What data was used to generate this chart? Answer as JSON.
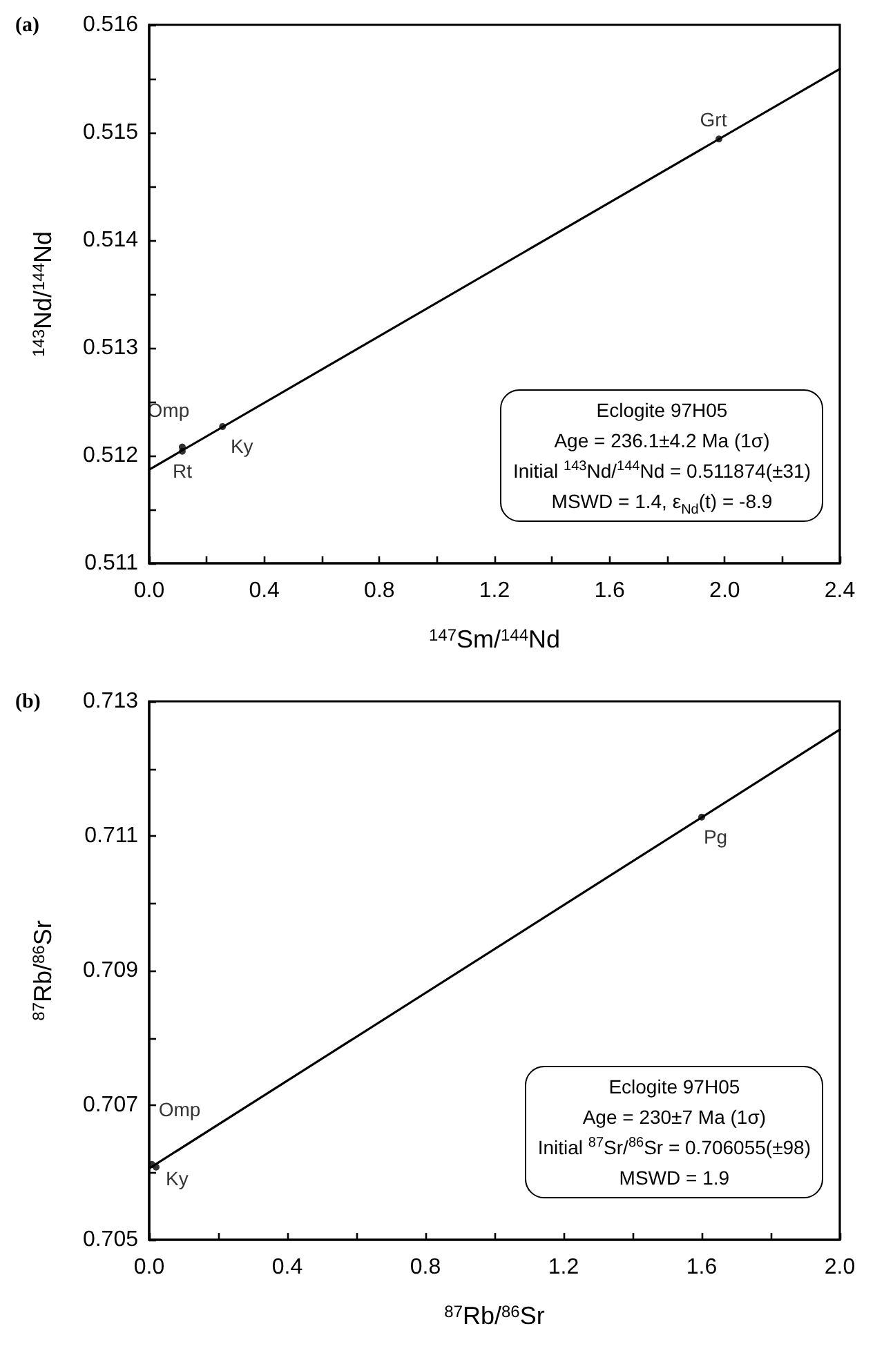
{
  "chart_data": [
    {
      "type": "scatter",
      "title": "(a)",
      "xlabel": "$^{147}$Sm/$^{144}$Nd",
      "ylabel": "$^{143}$Nd/$^{144}$Nd",
      "line_style": "solid",
      "xlim": [
        0,
        2.4
      ],
      "xticks": [
        {
          "value": 0,
          "label": "0.0"
        },
        {
          "value": 0.2,
          "label": null
        },
        0.4,
        {
          "value": 0.6,
          "label": null
        },
        0.8,
        {
          "value": 1,
          "label": null
        },
        1.2,
        {
          "value": 1.4,
          "label": null
        },
        1.6,
        {
          "value": 1.8,
          "label": null
        },
        {
          "value": 2,
          "label": "2.0"
        },
        {
          "value": 2.2,
          "label": null
        },
        2.4
      ],
      "ylim": [
        0.511,
        0.516
      ],
      "yticks": [
        0.511,
        {
          "value": 0.5115,
          "label": null
        },
        0.512,
        {
          "value": 0.5125,
          "label": null
        },
        0.513,
        {
          "value": 0.5135,
          "label": null
        },
        0.514,
        {
          "value": 0.5145,
          "label": null
        },
        0.515,
        {
          "value": 0.5155,
          "label": null
        },
        0.516
      ],
      "series": [
        {
          "type": "line",
          "marker": "none",
          "color": "#000000",
          "x": [
            0,
            2.4
          ],
          "values": [
            0.51187,
            0.51559
          ]
        },
        {
          "type": "scatter",
          "marker": "circle",
          "color": "#000000",
          "x": [
            0.115,
            0.115,
            0.255,
            1.98
          ],
          "values": [
            0.51208,
            0.51204,
            0.51227,
            0.51494
          ]
        }
      ],
      "annotations": [
        "Eclogite 97H05",
        "Age = 236.1±4.2 Ma (1σ)",
        "Initial $^{143}$Nd/$^{144}$Nd = 0.511874(±31)",
        "MSWD = 1.4, ε$_{Nd}$(t) = -8.9",
        {
          "text": "Omp",
          "x": 0.115,
          "y": 0.51208
        },
        {
          "text": "Rt",
          "x": 0.115,
          "y": 0.51204
        },
        {
          "text": "Ky",
          "x": 0.255,
          "y": 0.51227
        },
        {
          "text": "Grt",
          "x": 1.98,
          "y": 0.51494
        }
      ]
    },
    {
      "type": "scatter",
      "title": "(b)",
      "xlabel": "$^{87}$Rb/$^{86}$Sr",
      "ylabel": "$^{87}$Rb/$^{86}$Sr",
      "line_style": "solid",
      "xlim": [
        0,
        2
      ],
      "xticks": [
        {
          "value": 0,
          "label": "0.0"
        },
        {
          "value": 0.2,
          "label": null
        },
        0.4,
        {
          "value": 0.6,
          "label": null
        },
        0.8,
        {
          "value": 1,
          "label": null
        },
        1.2,
        {
          "value": 1.4,
          "label": null
        },
        1.6,
        {
          "value": 1.8,
          "label": null
        },
        {
          "value": 2,
          "label": "2.0"
        }
      ],
      "ylim": [
        0.705,
        0.713
      ],
      "yticks": [
        0.705,
        {
          "value": 0.706,
          "label": null
        },
        0.707,
        {
          "value": 0.708,
          "label": null
        },
        0.709,
        {
          "value": 0.71,
          "label": null
        },
        0.711,
        {
          "value": 0.712,
          "label": null
        },
        0.713
      ],
      "series": [
        {
          "type": "line",
          "marker": "none",
          "color": "#000000",
          "x": [
            0,
            2
          ],
          "values": [
            0.70606,
            0.71258
          ]
        },
        {
          "type": "scatter",
          "marker": "circle",
          "color": "#000000",
          "x": [
            0.008,
            0.02,
            1.6
          ],
          "values": [
            0.70612,
            0.70608,
            0.71128
          ]
        }
      ],
      "annotations": [
        "Eclogite 97H05",
        "Age = 230±7 Ma (1σ)",
        "Initial $^{87}$Sr/$^{86}$Sr = 0.706055(±98)",
        "MSWD = 1.9",
        {
          "text": "Omp",
          "x": 0.008,
          "y": 0.70612
        },
        {
          "text": "Ky",
          "x": 0.02,
          "y": 0.70608
        },
        {
          "text": "Pg",
          "x": 1.6,
          "y": 0.711275
        }
      ]
    }
  ]
}
